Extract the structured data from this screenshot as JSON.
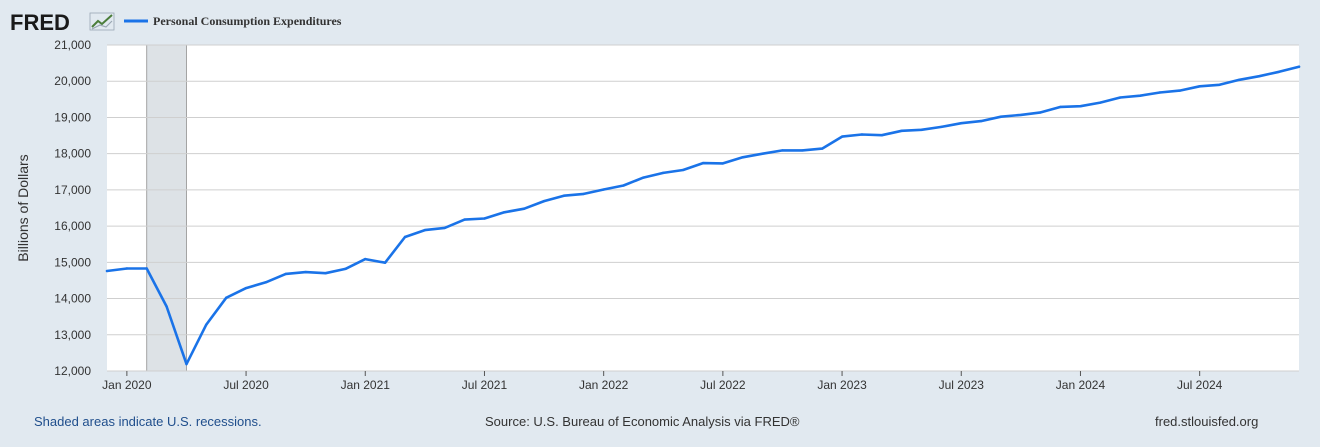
{
  "brand": {
    "logo_text": "FRED",
    "logo_icon": "line-chart-icon"
  },
  "footer": {
    "recession_note": "Shaded areas indicate U.S. recessions.",
    "source": "Source: U.S. Bureau of Economic Analysis via FRED®",
    "site": "fred.stlouisfed.org"
  },
  "colors": {
    "series": "#1a73e8",
    "recession": "#dde2e6",
    "grid": "#cfcfcf",
    "background": "#e1e9f0",
    "plot": "#ffffff"
  },
  "chart_data": {
    "type": "line",
    "title": "",
    "xlabel": "",
    "ylabel": "Billions of Dollars",
    "ylim": [
      12000,
      21000
    ],
    "yticks": [
      12000,
      13000,
      14000,
      15000,
      16000,
      17000,
      18000,
      19000,
      20000,
      21000
    ],
    "ytick_labels": [
      "12,000",
      "13,000",
      "14,000",
      "15,000",
      "16,000",
      "17,000",
      "18,000",
      "19,000",
      "20,000",
      "21,000"
    ],
    "xlim": [
      "2019-12",
      "2024-12"
    ],
    "xticks": [
      "2020-01",
      "2020-07",
      "2021-01",
      "2021-07",
      "2022-01",
      "2022-07",
      "2023-01",
      "2023-07",
      "2024-01",
      "2024-07"
    ],
    "xtick_labels": [
      "Jan 2020",
      "Jul 2020",
      "Jan 2021",
      "Jul 2021",
      "Jan 2022",
      "Jul 2022",
      "Jan 2023",
      "Jul 2023",
      "Jan 2024",
      "Jul 2024"
    ],
    "grid": true,
    "legend": "top-left",
    "recessions": [
      {
        "start": "2020-02",
        "end": "2020-04"
      }
    ],
    "series": [
      {
        "name": "Personal Consumption Expenditures",
        "x": [
          "2019-12",
          "2020-01",
          "2020-02",
          "2020-03",
          "2020-04",
          "2020-05",
          "2020-06",
          "2020-07",
          "2020-08",
          "2020-09",
          "2020-10",
          "2020-11",
          "2020-12",
          "2021-01",
          "2021-02",
          "2021-03",
          "2021-04",
          "2021-05",
          "2021-06",
          "2021-07",
          "2021-08",
          "2021-09",
          "2021-10",
          "2021-11",
          "2021-12",
          "2022-01",
          "2022-02",
          "2022-03",
          "2022-04",
          "2022-05",
          "2022-06",
          "2022-07",
          "2022-08",
          "2022-09",
          "2022-10",
          "2022-11",
          "2022-12",
          "2023-01",
          "2023-02",
          "2023-03",
          "2023-04",
          "2023-05",
          "2023-06",
          "2023-07",
          "2023-08",
          "2023-09",
          "2023-10",
          "2023-11",
          "2023-12",
          "2024-01",
          "2024-02",
          "2024-03",
          "2024-04",
          "2024-05",
          "2024-06",
          "2024-07",
          "2024-08",
          "2024-09",
          "2024-10",
          "2024-11",
          "2024-12"
        ],
        "values": [
          14760,
          14830,
          14830,
          13780,
          12190,
          13280,
          14020,
          14290,
          14450,
          14680,
          14730,
          14700,
          14820,
          15090,
          14990,
          15700,
          15890,
          15950,
          16180,
          16210,
          16380,
          16480,
          16690,
          16840,
          16890,
          17010,
          17120,
          17340,
          17470,
          17550,
          17740,
          17730,
          17900,
          18000,
          18090,
          18090,
          18140,
          18470,
          18530,
          18510,
          18630,
          18660,
          18740,
          18840,
          18900,
          19020,
          19070,
          19140,
          19290,
          19310,
          19410,
          19550,
          19600,
          19690,
          19740,
          19860,
          19900,
          20040,
          20140,
          20260,
          20400
        ]
      }
    ]
  }
}
